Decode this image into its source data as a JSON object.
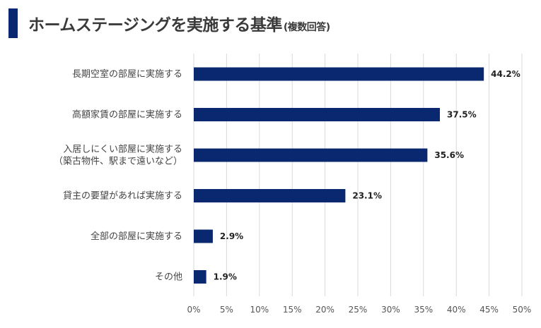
{
  "header": {
    "title": "ホームステージングを実施する基準",
    "subtitle": "(複数回答)"
  },
  "colors": {
    "bar": "#0a2870",
    "title_accent": "#0a2870",
    "grid": "#d9d9d9"
  },
  "chart_data": {
    "type": "bar",
    "orientation": "horizontal",
    "categories": [
      [
        "長期空室の部屋に実施する"
      ],
      [
        "高額家賃の部屋に実施する"
      ],
      [
        "入居しにくい部屋に実施する",
        "（築古物件、駅まで遠いなど）"
      ],
      [
        "貸主の要望があれば実施する"
      ],
      [
        "全部の部屋に実施する"
      ],
      [
        "その他"
      ]
    ],
    "values": [
      44.2,
      37.5,
      35.6,
      23.1,
      2.9,
      1.9
    ],
    "value_labels": [
      "44.2%",
      "37.5%",
      "35.6%",
      "23.1%",
      "2.9%",
      "1.9%"
    ],
    "xlim": [
      0,
      50
    ],
    "ticks": [
      "0%",
      "5%",
      "10%",
      "15%",
      "20%",
      "25%",
      "30%",
      "35%",
      "40%",
      "45%",
      "50%"
    ],
    "grid": true,
    "legend": "none"
  }
}
